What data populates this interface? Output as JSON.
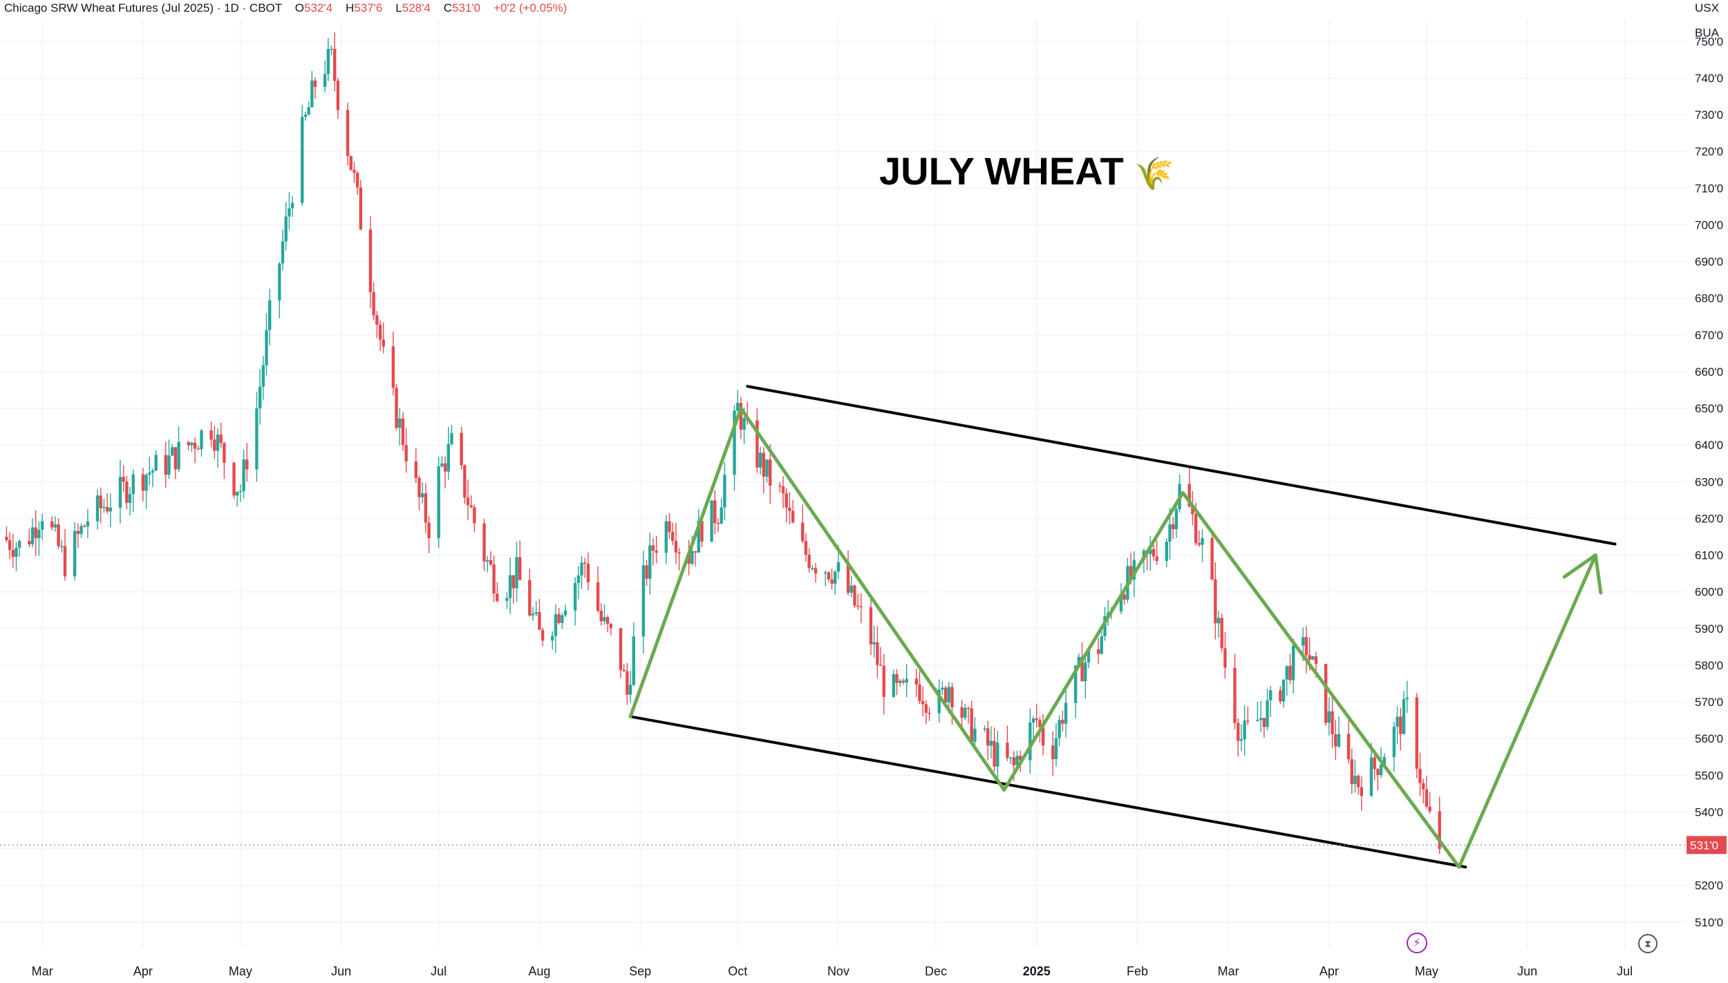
{
  "header": {
    "symbol": "Chicago SRW Wheat Futures (Jul 2025) · 1D · CBOT",
    "o_label": "O",
    "o_value": "532'4",
    "h_label": "H",
    "h_value": "537'6",
    "l_label": "L",
    "l_value": "528'4",
    "c_label": "C",
    "c_value": "531'0",
    "change": "+0'2 (+0.05%)"
  },
  "axis": {
    "currency": "USX",
    "unit": "BUA"
  },
  "annotation": {
    "title": "JULY WHEAT",
    "emoji": "🌾"
  },
  "colors": {
    "up": "#26a69a",
    "down": "#e5494d",
    "trend": "#6aaa50",
    "channel": "#000000",
    "last_price_tag": "#e5494d"
  },
  "icons": [
    "flash-icon",
    "replay-icon"
  ],
  "chart_data": {
    "type": "candlestick",
    "title": "Chicago SRW Wheat Futures (Jul 2025)",
    "timeframe": "1D",
    "exchange": "CBOT",
    "ohlc_last": {
      "open": "532'4",
      "high": "537'6",
      "low": "528'4",
      "close": "531'0",
      "change": "+0'2 (+0.05%)"
    },
    "last_price": 531,
    "last_price_label": "531'0",
    "ylim": [
      503,
      756
    ],
    "y_ticks": [
      510,
      520,
      530,
      540,
      550,
      560,
      570,
      580,
      590,
      600,
      610,
      620,
      630,
      640,
      650,
      660,
      670,
      680,
      690,
      700,
      710,
      720,
      730,
      740,
      750
    ],
    "y_tick_labels": [
      "510'0",
      "520'0",
      "530'0",
      "540'0",
      "550'0",
      "560'0",
      "570'0",
      "580'0",
      "590'0",
      "600'0",
      "610'0",
      "620'0",
      "630'0",
      "640'0",
      "650'0",
      "660'0",
      "670'0",
      "680'0",
      "690'0",
      "700'0",
      "710'0",
      "720'0",
      "730'0",
      "740'0",
      "750'0"
    ],
    "x_ticks": [
      {
        "date": "2024-03-01",
        "label": "Mar"
      },
      {
        "date": "2024-04-01",
        "label": "Apr"
      },
      {
        "date": "2024-05-01",
        "label": "May"
      },
      {
        "date": "2024-06-01",
        "label": "Jun"
      },
      {
        "date": "2024-07-01",
        "label": "Jul"
      },
      {
        "date": "2024-08-01",
        "label": "Aug"
      },
      {
        "date": "2024-09-01",
        "label": "Sep"
      },
      {
        "date": "2024-10-01",
        "label": "Oct"
      },
      {
        "date": "2024-11-01",
        "label": "Nov"
      },
      {
        "date": "2024-12-01",
        "label": "Dec"
      },
      {
        "date": "2025-01-01",
        "label": "2025"
      },
      {
        "date": "2025-02-01",
        "label": "Feb"
      },
      {
        "date": "2025-03-01",
        "label": "Mar"
      },
      {
        "date": "2025-04-01",
        "label": "Apr"
      },
      {
        "date": "2025-05-01",
        "label": "May"
      },
      {
        "date": "2025-06-01",
        "label": "Jun"
      },
      {
        "date": "2025-07-01",
        "label": "Jul"
      }
    ],
    "xlim": [
      "2024-02-17",
      "2025-07-20"
    ],
    "closes": [
      [
        "2024-02-17",
        615
      ],
      [
        "2024-02-24",
        612
      ],
      [
        "2024-03-01",
        622
      ],
      [
        "2024-03-08",
        608
      ],
      [
        "2024-03-15",
        620
      ],
      [
        "2024-03-22",
        625
      ],
      [
        "2024-04-01",
        632
      ],
      [
        "2024-04-08",
        635
      ],
      [
        "2024-04-15",
        640
      ],
      [
        "2024-04-22",
        645
      ],
      [
        "2024-04-29",
        630
      ],
      [
        "2024-05-01",
        628
      ],
      [
        "2024-05-06",
        650
      ],
      [
        "2024-05-10",
        675
      ],
      [
        "2024-05-15",
        700
      ],
      [
        "2024-05-20",
        725
      ],
      [
        "2024-05-25",
        742
      ],
      [
        "2024-05-29",
        745
      ],
      [
        "2024-06-01",
        730
      ],
      [
        "2024-06-05",
        712
      ],
      [
        "2024-06-10",
        685
      ],
      [
        "2024-06-15",
        658
      ],
      [
        "2024-06-20",
        642
      ],
      [
        "2024-06-25",
        625
      ],
      [
        "2024-06-28",
        618
      ],
      [
        "2024-07-01",
        632
      ],
      [
        "2024-07-05",
        640
      ],
      [
        "2024-07-10",
        625
      ],
      [
        "2024-07-15",
        610
      ],
      [
        "2024-07-20",
        600
      ],
      [
        "2024-07-25",
        605
      ],
      [
        "2024-08-01",
        588
      ],
      [
        "2024-08-05",
        592
      ],
      [
        "2024-08-10",
        600
      ],
      [
        "2024-08-15",
        608
      ],
      [
        "2024-08-20",
        592
      ],
      [
        "2024-08-25",
        585
      ],
      [
        "2024-08-28",
        572
      ],
      [
        "2024-09-01",
        600
      ],
      [
        "2024-09-05",
        612
      ],
      [
        "2024-09-10",
        620
      ],
      [
        "2024-09-15",
        608
      ],
      [
        "2024-09-20",
        618
      ],
      [
        "2024-09-25",
        622
      ],
      [
        "2024-10-01",
        650
      ],
      [
        "2024-10-05",
        640
      ],
      [
        "2024-10-10",
        632
      ],
      [
        "2024-10-15",
        625
      ],
      [
        "2024-10-20",
        612
      ],
      [
        "2024-10-25",
        608
      ],
      [
        "2024-11-01",
        605
      ],
      [
        "2024-11-05",
        598
      ],
      [
        "2024-11-10",
        590
      ],
      [
        "2024-11-15",
        575
      ],
      [
        "2024-11-20",
        572
      ],
      [
        "2024-11-25",
        575
      ],
      [
        "2024-12-01",
        568
      ],
      [
        "2024-12-05",
        575
      ],
      [
        "2024-12-10",
        565
      ],
      [
        "2024-12-15",
        560
      ],
      [
        "2024-12-20",
        555
      ],
      [
        "2024-12-25",
        552
      ],
      [
        "2024-12-28",
        560
      ],
      [
        "2025-01-01",
        565
      ],
      [
        "2025-01-05",
        555
      ],
      [
        "2025-01-10",
        570
      ],
      [
        "2025-01-15",
        580
      ],
      [
        "2025-01-20",
        585
      ],
      [
        "2025-01-25",
        600
      ],
      [
        "2025-02-01",
        605
      ],
      [
        "2025-02-05",
        610
      ],
      [
        "2025-02-10",
        615
      ],
      [
        "2025-02-14",
        628
      ],
      [
        "2025-02-18",
        620
      ],
      [
        "2025-02-22",
        610
      ],
      [
        "2025-02-26",
        590
      ],
      [
        "2025-03-01",
        575
      ],
      [
        "2025-03-05",
        560
      ],
      [
        "2025-03-10",
        565
      ],
      [
        "2025-03-15",
        570
      ],
      [
        "2025-03-20",
        580
      ],
      [
        "2025-03-25",
        585
      ],
      [
        "2025-04-01",
        565
      ],
      [
        "2025-04-05",
        555
      ],
      [
        "2025-04-10",
        548
      ],
      [
        "2025-04-15",
        552
      ],
      [
        "2025-04-20",
        560
      ],
      [
        "2025-04-25",
        568
      ],
      [
        "2025-04-28",
        555
      ],
      [
        "2025-05-01",
        540
      ],
      [
        "2025-05-05",
        531
      ]
    ],
    "annotations": {
      "text": "JULY WHEAT 🌾",
      "channel_upper": [
        [
          "2024-10-04",
          656
        ],
        [
          "2025-06-28",
          613
        ]
      ],
      "channel_lower": [
        [
          "2024-08-29",
          566
        ],
        [
          "2025-05-13",
          525
        ]
      ],
      "zigzag": [
        [
          "2024-08-29",
          566
        ],
        [
          "2024-10-02",
          650
        ],
        [
          "2024-12-22",
          546
        ],
        [
          "2025-02-15",
          627
        ],
        [
          "2025-05-11",
          525
        ],
        [
          "2025-06-22",
          610
        ]
      ],
      "arrow_tip": [
        "2025-06-22",
        610
      ]
    }
  }
}
